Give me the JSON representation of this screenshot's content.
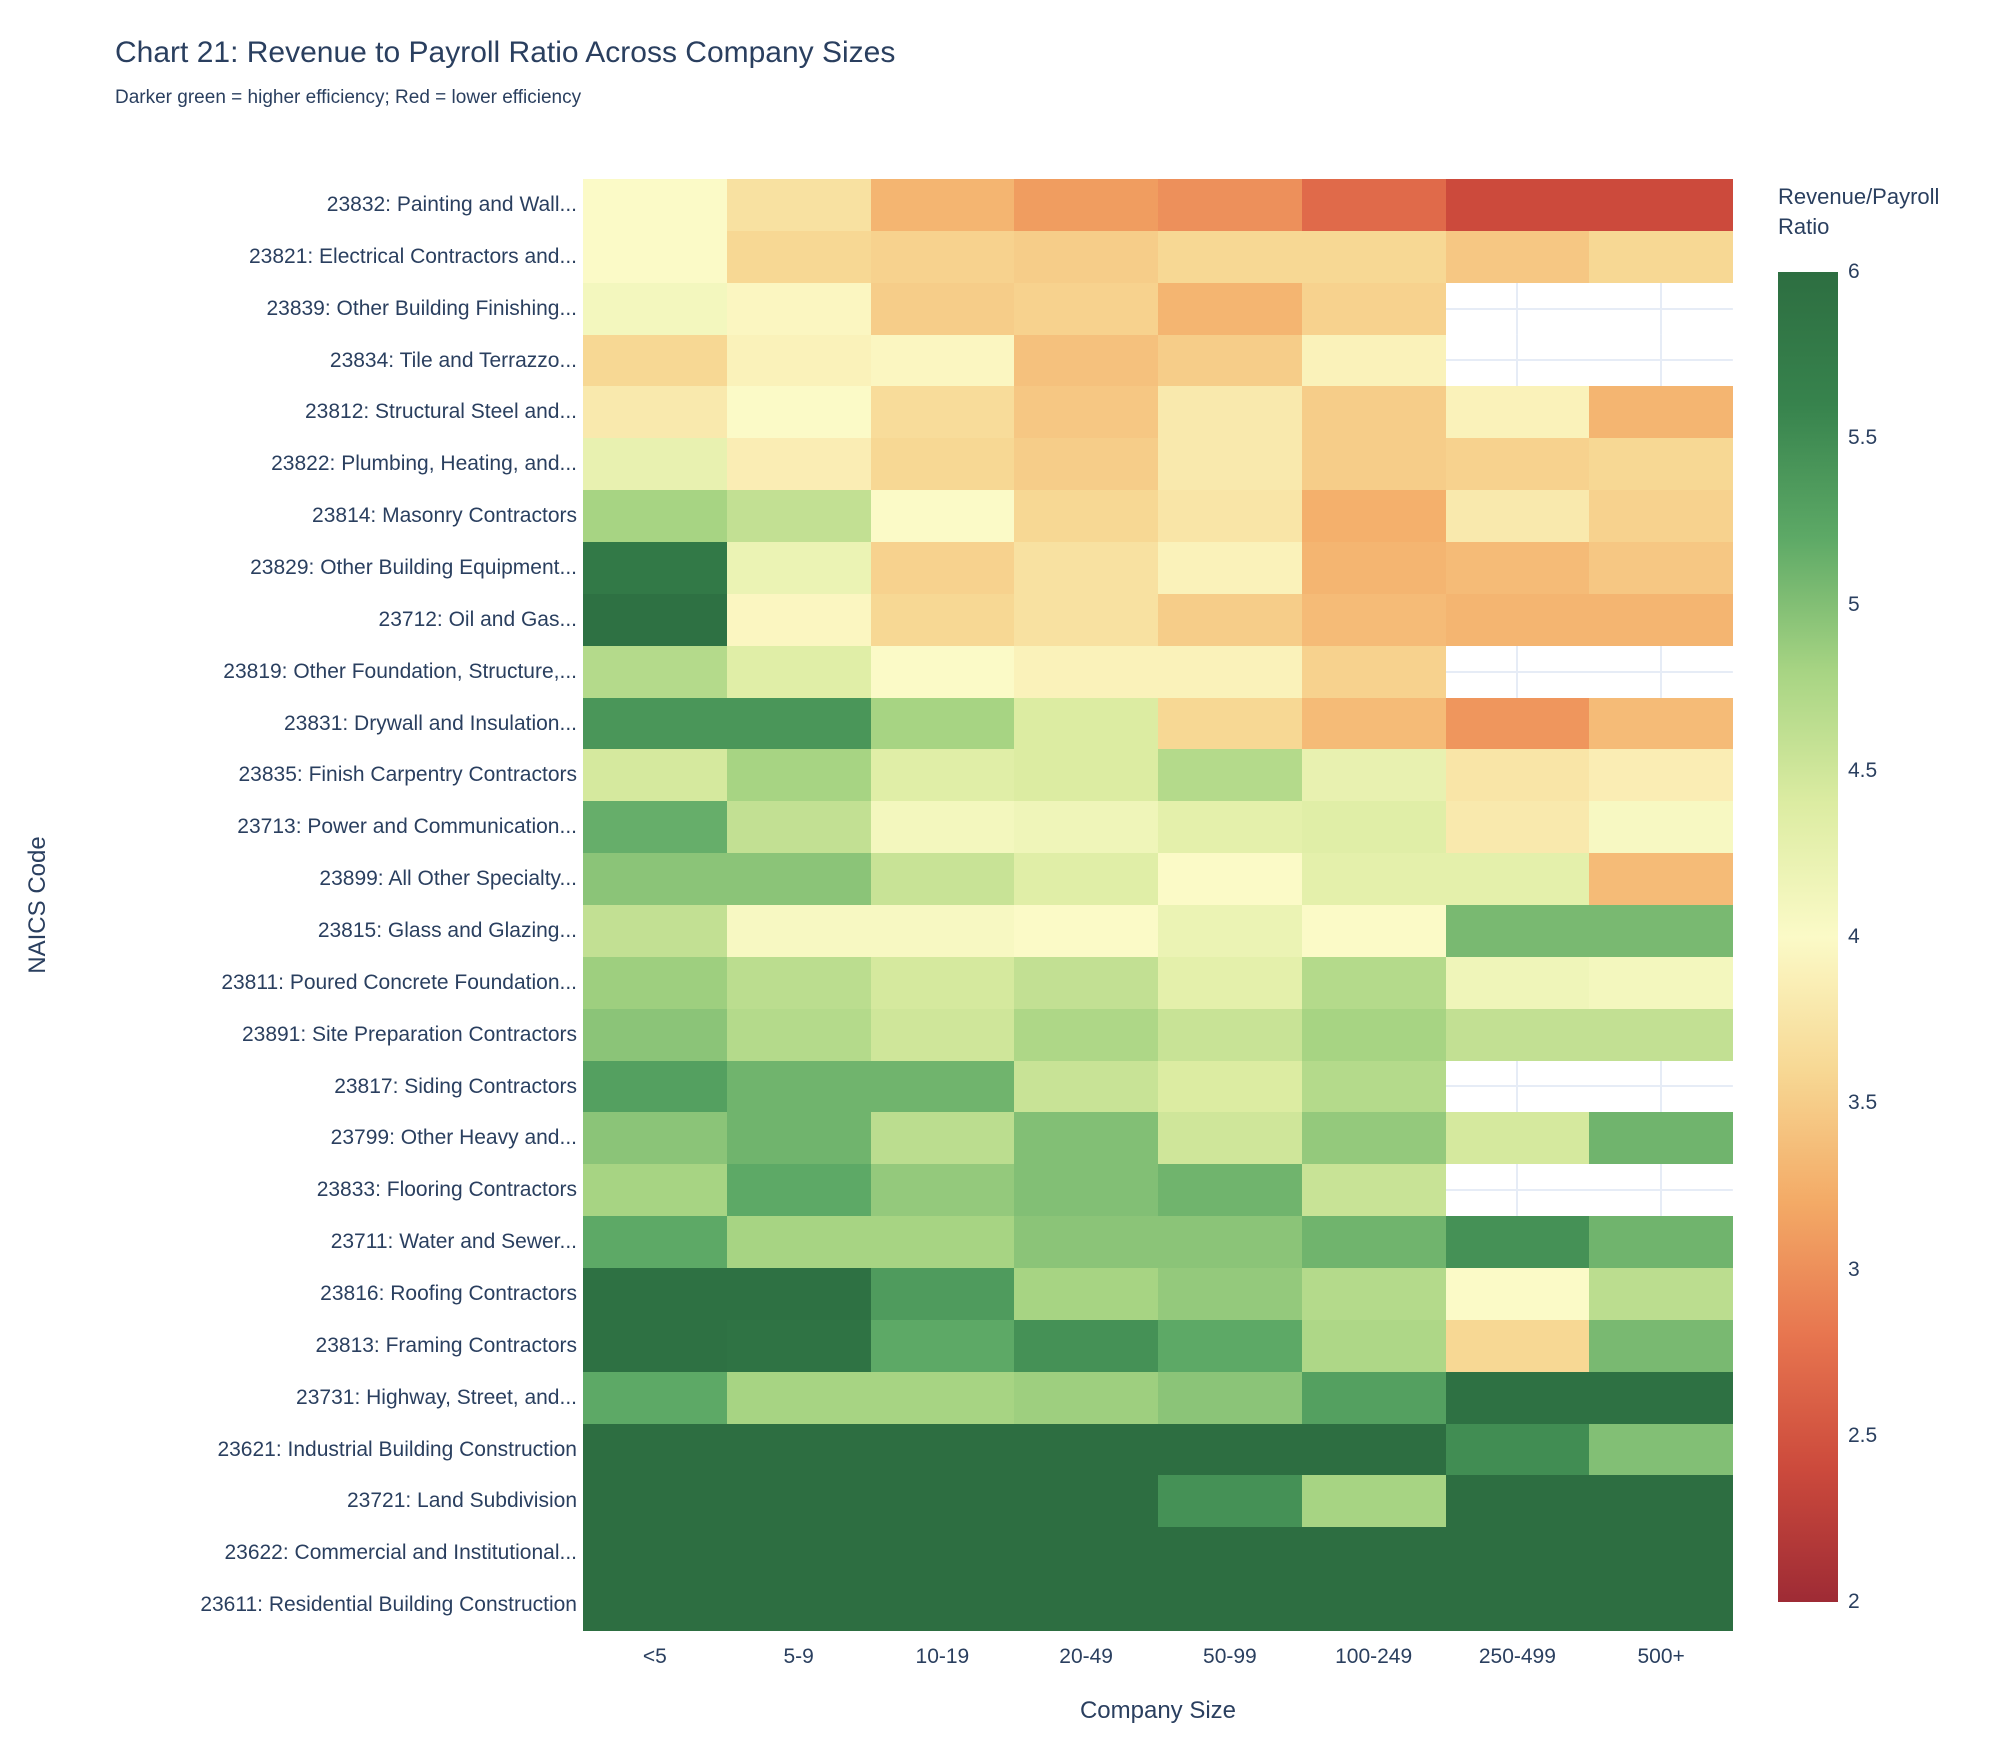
{
  "title": "Chart 21: Revenue to Payroll Ratio Across Company Sizes",
  "subtitle": "Darker green = higher efficiency; Red = lower efficiency",
  "text_color": "#2a3f5f",
  "chart_data": {
    "type": "heatmap",
    "title": "Chart 21: Revenue to Payroll Ratio Across Company Sizes",
    "subtitle": "Darker green = higher efficiency; Red = lower efficiency",
    "xlabel": "Company Size",
    "ylabel": "NAICS Code",
    "x_categories": [
      "<5",
      "5-9",
      "10-19",
      "20-49",
      "50-99",
      "100-249",
      "250-499",
      "500+"
    ],
    "y_categories": [
      "23832: Painting and Wall...",
      "23821: Electrical Contractors and...",
      "23839: Other Building Finishing...",
      "23834: Tile and Terrazzo...",
      "23812: Structural Steel and...",
      "23822: Plumbing, Heating, and...",
      "23814: Masonry Contractors",
      "23829: Other Building Equipment...",
      "23712: Oil and Gas...",
      "23819: Other Foundation, Structure,...",
      "23831: Drywall and Insulation...",
      "23835: Finish Carpentry Contractors",
      "23713: Power and Communication...",
      "23899: All Other Specialty...",
      "23815: Glass and Glazing...",
      "23811: Poured Concrete Foundation...",
      "23891: Site Preparation Contractors",
      "23817: Siding Contractors",
      "23799: Other Heavy and...",
      "23833: Flooring Contractors",
      "23711: Water and Sewer...",
      "23816: Roofing Contractors",
      "23813: Framing Contractors",
      "23731: Highway, Street, and...",
      "23621: Industrial Building Construction",
      "23721: Land Subdivision",
      "23622: Commercial and Institutional...",
      "23611: Residential Building Construction"
    ],
    "values": [
      [
        4.0,
        3.7,
        3.3,
        3.1,
        3.0,
        2.7,
        2.4,
        2.4
      ],
      [
        4.0,
        3.6,
        3.55,
        3.5,
        3.6,
        3.6,
        3.45,
        3.6
      ],
      [
        4.1,
        3.95,
        3.5,
        3.55,
        3.3,
        3.55,
        null,
        null
      ],
      [
        3.6,
        3.9,
        3.95,
        3.4,
        3.5,
        3.9,
        null,
        null
      ],
      [
        3.8,
        4.0,
        3.65,
        3.45,
        3.8,
        3.5,
        3.9,
        3.3
      ],
      [
        4.25,
        3.85,
        3.6,
        3.5,
        3.8,
        3.5,
        3.55,
        3.6
      ],
      [
        4.8,
        4.6,
        4.0,
        3.6,
        3.75,
        3.25,
        3.8,
        3.55
      ],
      [
        5.8,
        4.2,
        3.55,
        3.7,
        3.9,
        3.3,
        3.35,
        3.45
      ],
      [
        5.95,
        3.95,
        3.6,
        3.7,
        3.5,
        3.35,
        3.3,
        3.3
      ],
      [
        4.7,
        4.35,
        4.0,
        3.9,
        3.9,
        3.55,
        null,
        null
      ],
      [
        5.4,
        5.4,
        4.8,
        4.4,
        3.6,
        3.35,
        3.05,
        3.35
      ],
      [
        4.45,
        4.8,
        4.35,
        4.4,
        4.7,
        4.25,
        3.75,
        3.85
      ],
      [
        5.15,
        4.6,
        4.1,
        4.15,
        4.3,
        4.35,
        3.8,
        4.05
      ],
      [
        4.95,
        4.95,
        4.55,
        4.35,
        4.0,
        4.3,
        4.3,
        3.35
      ],
      [
        4.6,
        4.05,
        4.05,
        4.0,
        4.2,
        4.0,
        5.05,
        5.05
      ],
      [
        4.85,
        4.65,
        4.45,
        4.6,
        4.3,
        4.7,
        4.15,
        4.1
      ],
      [
        4.95,
        4.7,
        4.5,
        4.75,
        4.55,
        4.8,
        4.6,
        4.6
      ],
      [
        5.3,
        5.1,
        5.1,
        4.55,
        4.4,
        4.7,
        null,
        null
      ],
      [
        4.95,
        5.1,
        4.65,
        5.0,
        4.5,
        4.9,
        4.45,
        5.1
      ],
      [
        4.8,
        5.2,
        4.9,
        5.0,
        5.1,
        4.55,
        null,
        null
      ],
      [
        5.2,
        4.8,
        4.8,
        4.95,
        4.95,
        5.1,
        5.45,
        5.1
      ],
      [
        5.95,
        5.95,
        5.35,
        4.8,
        4.9,
        4.7,
        4.0,
        4.65
      ],
      [
        5.95,
        5.9,
        5.2,
        5.45,
        5.2,
        4.75,
        3.6,
        5.05
      ],
      [
        5.2,
        4.8,
        4.8,
        4.85,
        4.95,
        5.3,
        5.95,
        5.95
      ],
      [
        6.0,
        6.0,
        6.0,
        6.0,
        6.0,
        6.0,
        5.5,
        5.0
      ],
      [
        6.0,
        6.0,
        6.0,
        6.0,
        5.45,
        4.8,
        6.0,
        6.0
      ],
      [
        6.0,
        6.0,
        6.0,
        6.0,
        6.0,
        6.0,
        6.0,
        6.0
      ],
      [
        6.0,
        6.0,
        6.0,
        6.0,
        6.0,
        6.0,
        6.0,
        6.0
      ]
    ],
    "value_range": [
      2,
      6
    ],
    "grid": "light gridlines visible only in missing cells",
    "legend_position": "right",
    "colorscale": [
      [
        0.0,
        "#9e2b35"
      ],
      [
        0.1,
        "#cc4a3c"
      ],
      [
        0.2,
        "#e7754f"
      ],
      [
        0.3,
        "#f3aa66"
      ],
      [
        0.4,
        "#f7d894"
      ],
      [
        0.5,
        "#fbfac7"
      ],
      [
        0.6,
        "#dceca2"
      ],
      [
        0.7,
        "#a7d483"
      ],
      [
        0.8,
        "#5da966"
      ],
      [
        0.9,
        "#37834d"
      ],
      [
        1.0,
        "#2d6e41"
      ]
    ],
    "colorbar": {
      "title_lines": [
        "Revenue/Payroll",
        "Ratio"
      ],
      "tick_labels": [
        "6",
        "5.5",
        "5",
        "4.5",
        "4",
        "3.5",
        "3",
        "2.5",
        "2"
      ],
      "tick_values": [
        6,
        5.5,
        5,
        4.5,
        4,
        3.5,
        3,
        2.5,
        2
      ]
    }
  }
}
